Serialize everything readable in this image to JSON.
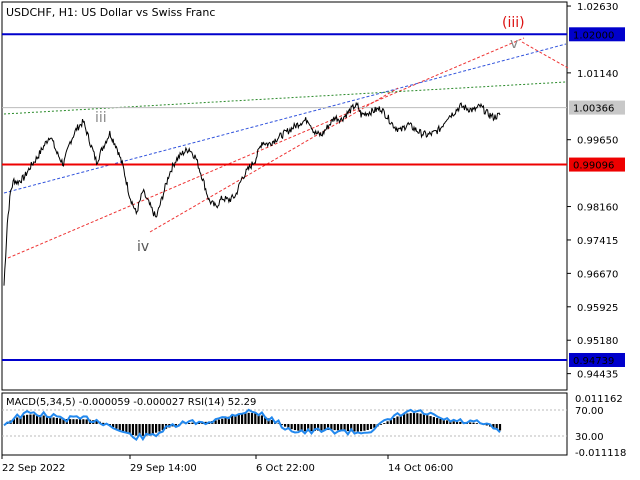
{
  "chart_data": {
    "type": "line",
    "title": "USDCHF, H1:  US Dollar vs Swiss Franc",
    "y_ticks": [
      "1.02630",
      "1.01140",
      "0.99650",
      "0.98160",
      "0.97415",
      "0.96670",
      "0.95925",
      "0.95180",
      "0.94435"
    ],
    "ylim": [
      0.9407,
      1.0272
    ],
    "x_ticks": [
      "22 Sep 2022",
      "29 Sep 14:00",
      "6 Oct 22:00",
      "14 Oct 06:00"
    ],
    "price_series": [
      [
        0,
        0.964
      ],
      [
        1,
        0.978
      ],
      [
        2,
        0.985
      ],
      [
        3,
        0.9875
      ],
      [
        4,
        0.987
      ],
      [
        6,
        0.988
      ],
      [
        8,
        0.9905
      ],
      [
        10,
        0.9925
      ],
      [
        12,
        0.995
      ],
      [
        14,
        0.9975
      ],
      [
        16,
        0.9935
      ],
      [
        18,
        0.991
      ],
      [
        20,
        0.996
      ],
      [
        22,
        0.999
      ],
      [
        24,
        1.0005
      ],
      [
        26,
        0.996
      ],
      [
        28,
        0.9915
      ],
      [
        30,
        0.995
      ],
      [
        32,
        0.998
      ],
      [
        34,
        0.995
      ],
      [
        36,
        0.9905
      ],
      [
        38,
        0.984
      ],
      [
        40,
        0.98
      ],
      [
        42,
        0.985
      ],
      [
        44,
        0.982
      ],
      [
        46,
        0.979
      ],
      [
        48,
        0.984
      ],
      [
        50,
        0.989
      ],
      [
        52,
        0.992
      ],
      [
        54,
        0.9935
      ],
      [
        56,
        0.9945
      ],
      [
        58,
        0.9925
      ],
      [
        60,
        0.988
      ],
      [
        62,
        0.983
      ],
      [
        64,
        0.9815
      ],
      [
        66,
        0.9835
      ],
      [
        68,
        0.983
      ],
      [
        70,
        0.984
      ],
      [
        72,
        0.988
      ],
      [
        74,
        0.99
      ],
      [
        76,
        0.992
      ],
      [
        78,
        0.996
      ],
      [
        80,
        0.9955
      ],
      [
        82,
        0.9965
      ],
      [
        84,
        0.9975
      ],
      [
        86,
        0.9985
      ],
      [
        88,
        0.9995
      ],
      [
        90,
        1.0005
      ],
      [
        92,
        1.001
      ],
      [
        94,
        0.998
      ],
      [
        96,
        0.9975
      ],
      [
        98,
        0.9995
      ],
      [
        100,
        1.0015
      ],
      [
        102,
        1.001
      ],
      [
        104,
        1.0025
      ],
      [
        106,
        1.004
      ],
      [
        107,
        1.004
      ],
      [
        108,
        1.002
      ],
      [
        110,
        1.0025
      ],
      [
        112,
        1.003
      ],
      [
        114,
        1.0035
      ],
      [
        116,
        1.0015
      ],
      [
        118,
        0.9995
      ],
      [
        120,
        0.9985
      ],
      [
        122,
        1.0
      ],
      [
        124,
        0.999
      ],
      [
        126,
        0.998
      ],
      [
        128,
        0.9975
      ],
      [
        130,
        0.998
      ],
      [
        132,
        0.999
      ],
      [
        134,
        1.0015
      ],
      [
        136,
        1.0025
      ],
      [
        138,
        1.004
      ],
      [
        140,
        1.0035
      ],
      [
        142,
        1.003
      ],
      [
        144,
        1.004
      ],
      [
        146,
        1.0025
      ],
      [
        148,
        1.0015
      ],
      [
        150,
        1.002
      ]
    ],
    "levels": [
      {
        "value": 1.02,
        "label": "1.02000",
        "color": "#0000cc"
      },
      {
        "value": 0.99096,
        "label": "0.99096",
        "color": "#ee0000"
      },
      {
        "value": 0.94739,
        "label": "0.94739",
        "color": "#0000cc"
      }
    ],
    "current_price": {
      "value": 1.00366,
      "label": "1.00366"
    },
    "wave_labels": [
      {
        "text": "iii",
        "color": "#888888"
      },
      {
        "text": "iv",
        "color": "#555555"
      },
      {
        "text": "v",
        "color": "#888888"
      },
      {
        "text": "(iii)",
        "color": "#dd1111"
      }
    ],
    "indicator": {
      "label": "MACD(5,34,5) -0.000059 -0.000027 RSI(14) 52.29",
      "ticks": [
        "0.011162",
        "70.00",
        "30.00",
        "-0.011118"
      ]
    }
  }
}
